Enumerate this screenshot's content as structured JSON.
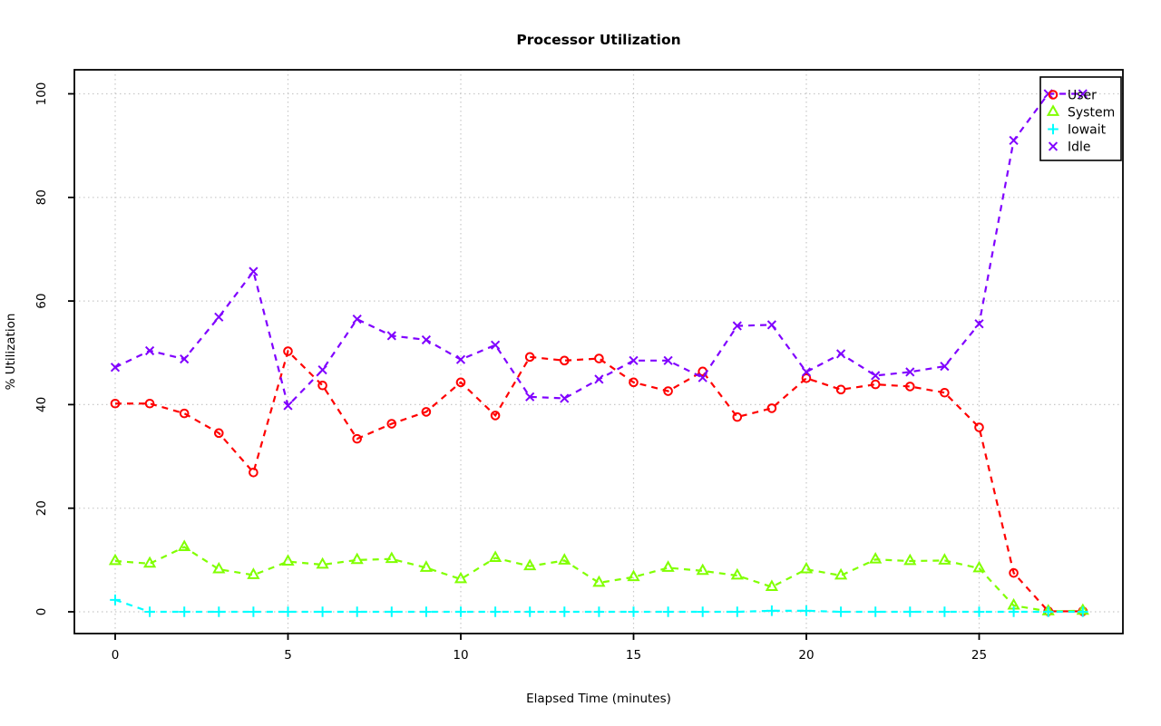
{
  "chart_data": {
    "type": "line",
    "title": "Processor Utilization",
    "xlabel": "Elapsed Time (minutes)",
    "ylabel": "% Utilization",
    "xlim": [
      0,
      28
    ],
    "ylim": [
      0,
      100
    ],
    "x_ticks": [
      0,
      5,
      10,
      15,
      20,
      25
    ],
    "y_ticks": [
      0,
      20,
      40,
      60,
      80,
      100
    ],
    "grid": "dotted",
    "line_style": "dashed",
    "legend_position": "top-right",
    "x": [
      0,
      1,
      2,
      3,
      4,
      5,
      6,
      7,
      8,
      9,
      10,
      11,
      12,
      13,
      14,
      15,
      16,
      17,
      18,
      19,
      20,
      21,
      22,
      23,
      24,
      25,
      26,
      27,
      28
    ],
    "series": [
      {
        "name": "User",
        "color": "#FF0000",
        "marker": "circle",
        "values": [
          40.2,
          40.2,
          38.3,
          34.5,
          26.9,
          50.3,
          43.7,
          33.4,
          36.3,
          38.6,
          44.3,
          37.9,
          49.2,
          48.5,
          48.9,
          44.3,
          42.6,
          46.4,
          37.6,
          39.3,
          45.1,
          42.9,
          43.9,
          43.5,
          42.3,
          35.6,
          7.5,
          0.1,
          0.1
        ]
      },
      {
        "name": "System",
        "color": "#80FF00",
        "marker": "triangle",
        "values": [
          9.8,
          9.3,
          12.5,
          8.2,
          7.1,
          9.7,
          9.1,
          10.0,
          10.2,
          8.5,
          6.3,
          10.4,
          8.8,
          9.9,
          5.6,
          6.7,
          8.5,
          7.9,
          7.0,
          4.8,
          8.2,
          7.0,
          10.1,
          9.8,
          9.9,
          8.4,
          1.2,
          0.1,
          0.2
        ]
      },
      {
        "name": "Iowait",
        "color": "#00FFFF",
        "marker": "plus",
        "values": [
          2.3,
          0,
          0,
          0,
          0,
          0,
          0,
          0,
          0,
          0,
          0,
          0,
          0,
          0,
          0,
          0,
          0,
          0,
          0,
          0.2,
          0.2,
          0,
          0,
          0,
          0,
          0,
          0,
          0,
          0
        ]
      },
      {
        "name": "Idle",
        "color": "#8000FF",
        "marker": "x",
        "values": [
          47.2,
          50.4,
          48.8,
          56.9,
          65.7,
          39.8,
          46.7,
          56.5,
          53.3,
          52.5,
          48.7,
          51.5,
          41.5,
          41.2,
          44.9,
          48.5,
          48.5,
          45.2,
          55.2,
          55.4,
          46.3,
          49.8,
          45.6,
          46.3,
          47.4,
          55.6,
          91.0,
          100.0,
          100.0
        ]
      }
    ]
  }
}
